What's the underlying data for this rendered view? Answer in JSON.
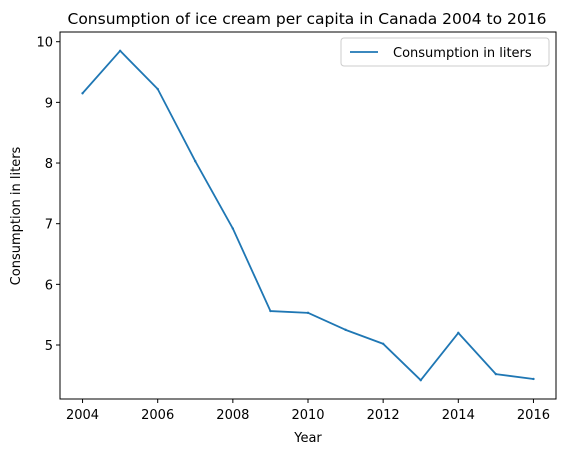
{
  "chart_data": {
    "type": "line",
    "title": "Consumption of ice cream per capita in Canada 2004 to 2016",
    "xlabel": "Year",
    "ylabel": "Consumption in liters",
    "x": [
      2004,
      2005,
      2006,
      2007,
      2008,
      2009,
      2010,
      2011,
      2012,
      2013,
      2014,
      2015,
      2016
    ],
    "series": [
      {
        "name": "Consumption in liters",
        "color": "#1f77b4",
        "values": [
          9.15,
          9.85,
          9.22,
          8.03,
          6.92,
          5.56,
          5.53,
          5.25,
          5.02,
          4.42,
          5.2,
          4.52,
          4.44
        ]
      }
    ],
    "xlim": [
      2003.4,
      2016.6
    ],
    "ylim": [
      4.11,
      10.16
    ],
    "xticks": [
      "2004",
      "2006",
      "2008",
      "2010",
      "2012",
      "2014",
      "2016"
    ],
    "yticks": [
      "5",
      "6",
      "7",
      "8",
      "9",
      "10"
    ],
    "grid": false,
    "legend_position": "top-right"
  }
}
